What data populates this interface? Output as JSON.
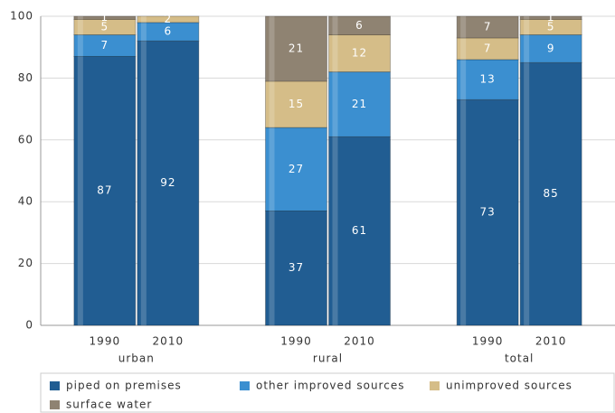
{
  "chart_data": {
    "type": "stacked_bar",
    "groups": [
      "urban",
      "rural",
      "total"
    ],
    "categories": [
      "1990",
      "2010",
      "1990",
      "2010",
      "1990",
      "2010"
    ],
    "series": [
      {
        "name": "piped on premises",
        "color": "#215d92",
        "values": [
          87,
          92,
          37,
          61,
          73,
          85
        ]
      },
      {
        "name": "other improved sources",
        "color": "#3b8fd0",
        "values": [
          7,
          6,
          27,
          21,
          13,
          9
        ]
      },
      {
        "name": "unimproved sources",
        "color": "#d5bd88",
        "values": [
          5,
          2,
          15,
          12,
          7,
          5
        ]
      },
      {
        "name": "surface water",
        "color": "#8f8372",
        "values": [
          1,
          0,
          21,
          6,
          7,
          1
        ]
      }
    ],
    "ylim": [
      0,
      100
    ],
    "yticks": [
      0,
      20,
      40,
      60,
      80,
      100
    ],
    "grid": true,
    "legend": "bottom"
  }
}
